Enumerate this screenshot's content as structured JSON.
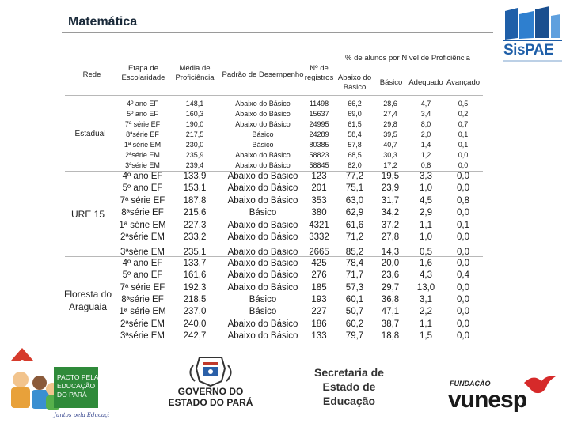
{
  "title": "Matemática",
  "logo": {
    "name": "SisPAE"
  },
  "header": {
    "rede": "Rede",
    "etapa": "Etapa de Escolaridade",
    "media": "Média de Proficiência",
    "padrao": "Padrão de Desempenho",
    "registros": "Nº de registros",
    "percent_group": "% de alunos por Nível de Proficiência",
    "abaixo": "Abaixo do Básico",
    "basico": "Básico",
    "adequado": "Adequado",
    "avancado": "Avançado"
  },
  "groups": [
    {
      "rede": "Estadual",
      "rows": [
        {
          "etapa": "4º ano EF",
          "media": "148,1",
          "padrao": "Abaixo do Básico",
          "registros": "11498",
          "abaixo": "66,2",
          "basico": "28,6",
          "adequado": "4,7",
          "avancado": "0,5"
        },
        {
          "etapa": "5º ano EF",
          "media": "160,3",
          "padrao": "Abaixo do Básico",
          "registros": "15637",
          "abaixo": "69,0",
          "basico": "27,4",
          "adequado": "3,4",
          "avancado": "0,2"
        },
        {
          "etapa": "7ª série EF",
          "media": "190,0",
          "padrao": "Abaixo do Básico",
          "registros": "24995",
          "abaixo": "61,5",
          "basico": "29,8",
          "adequado": "8,0",
          "avancado": "0,7"
        },
        {
          "etapa": "8ªsérie EF",
          "media": "217,5",
          "padrao": "Básico",
          "registros": "24289",
          "abaixo": "58,4",
          "basico": "39,5",
          "adequado": "2,0",
          "avancado": "0,1"
        },
        {
          "etapa": "1ª série EM",
          "media": "230,0",
          "padrao": "Básico",
          "registros": "80385",
          "abaixo": "57,8",
          "basico": "40,7",
          "adequado": "1,4",
          "avancado": "0,1"
        },
        {
          "etapa": "2ªsérie EM",
          "media": "235,9",
          "padrao": "Abaixo do Básico",
          "registros": "58823",
          "abaixo": "68,5",
          "basico": "30,3",
          "adequado": "1,2",
          "avancado": "0,0"
        },
        {
          "etapa": "3ªsérie EM",
          "media": "239,4",
          "padrao": "Abaixo do Básico",
          "registros": "58845",
          "abaixo": "82,0",
          "basico": "17,2",
          "adequado": "0,8",
          "avancado": "0,0"
        }
      ]
    },
    {
      "rede": "URE 15",
      "rows": [
        {
          "etapa": "4º ano EF",
          "media": "133,9",
          "padrao": "Abaixo do Básico",
          "registros": "123",
          "abaixo": "77,2",
          "basico": "19,5",
          "adequado": "3,3",
          "avancado": "0,0"
        },
        {
          "etapa": "5º ano EF",
          "media": "153,1",
          "padrao": "Abaixo do Básico",
          "registros": "201",
          "abaixo": "75,1",
          "basico": "23,9",
          "adequado": "1,0",
          "avancado": "0,0"
        },
        {
          "etapa": "7ª série EF",
          "media": "187,8",
          "padrao": "Abaixo do Básico",
          "registros": "353",
          "abaixo": "63,0",
          "basico": "31,7",
          "adequado": "4,5",
          "avancado": "0,8"
        },
        {
          "etapa": "8ªsérie EF",
          "media": "215,6",
          "padrao": "Básico",
          "registros": "380",
          "abaixo": "62,9",
          "basico": "34,2",
          "adequado": "2,9",
          "avancado": "0,0"
        },
        {
          "etapa": "1ª série EM",
          "media": "227,3",
          "padrao": "Abaixo do Básico",
          "registros": "4321",
          "abaixo": "61,6",
          "basico": "37,2",
          "adequado": "1,1",
          "avancado": "0,1"
        },
        {
          "etapa": "2ªsérie EM",
          "media": "233,2",
          "padrao": "Abaixo do Básico",
          "registros": "3332",
          "abaixo": "71,2",
          "basico": "27,8",
          "adequado": "1,0",
          "avancado": "0,0"
        },
        {
          "etapa": "3ªsérie EM",
          "media": "235,1",
          "padrao": "Abaixo do Básico",
          "registros": "2665",
          "abaixo": "85,2",
          "basico": "14,3",
          "adequado": "0,5",
          "avancado": "0,0"
        }
      ]
    },
    {
      "rede": "Floresta do Araguaia",
      "rows": [
        {
          "etapa": "4º ano EF",
          "media": "133,7",
          "padrao": "Abaixo do Básico",
          "registros": "425",
          "abaixo": "78,4",
          "basico": "20,0",
          "adequado": "1,6",
          "avancado": "0,0"
        },
        {
          "etapa": "5º ano EF",
          "media": "161,6",
          "padrao": "Abaixo do Básico",
          "registros": "276",
          "abaixo": "71,7",
          "basico": "23,6",
          "adequado": "4,3",
          "avancado": "0,4"
        },
        {
          "etapa": "7ª série EF",
          "media": "192,3",
          "padrao": "Abaixo do Básico",
          "registros": "185",
          "abaixo": "57,3",
          "basico": "29,7",
          "adequado": "13,0",
          "avancado": "0,0"
        },
        {
          "etapa": "8ªsérie EF",
          "media": "218,5",
          "padrao": "Básico",
          "registros": "193",
          "abaixo": "60,1",
          "basico": "36,8",
          "adequado": "3,1",
          "avancado": "0,0"
        },
        {
          "etapa": "1ª série EM",
          "media": "237,0",
          "padrao": "Básico",
          "registros": "227",
          "abaixo": "50,7",
          "basico": "47,1",
          "adequado": "2,2",
          "avancado": "0,0"
        },
        {
          "etapa": "2ªsérie EM",
          "media": "240,0",
          "padrao": "Abaixo do Básico",
          "registros": "186",
          "abaixo": "60,2",
          "basico": "38,7",
          "adequado": "1,1",
          "avancado": "0,0"
        },
        {
          "etapa": "3ªsérie EM",
          "media": "242,7",
          "padrao": "Abaixo do Básico",
          "registros": "133",
          "abaixo": "79,7",
          "basico": "18,8",
          "adequado": "1,5",
          "avancado": "0,0"
        }
      ]
    }
  ],
  "footer": {
    "pacto_logo": [
      "PACTO PELA",
      "EDUCAÇÃO",
      "DO PARÁ"
    ],
    "pacto_slogan": "Juntos pela Educação",
    "governo": [
      "GOVERNO DO",
      "ESTADO DO PARÁ"
    ],
    "secretaria": [
      "Secretaria de",
      "Estado de",
      "Educação"
    ],
    "fundacao": "FUNDAÇÃO",
    "vunesp": "vunesp"
  },
  "colors": {
    "text": "#1a1a1a",
    "brand_blue": "#1f5fa8",
    "rule": "#b8b8b8"
  }
}
